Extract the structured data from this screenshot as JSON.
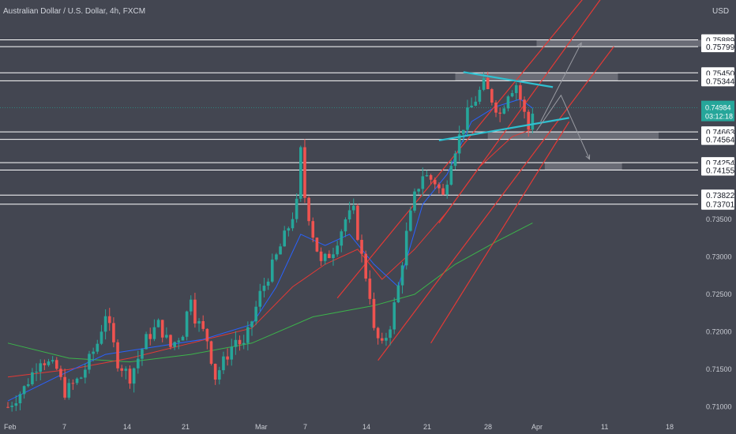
{
  "header": {
    "title": "Australian Dollar / U.S. Dollar, 4h, FXCM",
    "currency": "USD"
  },
  "colors": {
    "background": "#434651",
    "up_candle": "#26a69a",
    "down_candle": "#ef5350",
    "level_line": "#ffffff",
    "channel": "#e53935",
    "trend_line": "#2fc0d0",
    "sma_fast": "#2962ff",
    "sma_mid": "#e53935",
    "sma_slow": "#3cb44b",
    "zone": "#8a8d96",
    "projection": "#9a9ca3",
    "current_price": "#26a69a"
  },
  "chart_data": {
    "type": "candlestick",
    "title": "Australian Dollar / U.S. Dollar, 4h, FXCM",
    "y_unit": "USD",
    "ylim": [
      0.7085,
      0.7642
    ],
    "x_ticks": [
      "Feb",
      "7",
      "14",
      "21",
      "Mar",
      "7",
      "14",
      "21",
      "28",
      "Apr",
      "11",
      "18"
    ],
    "y_ticks": [
      "0.73500",
      "0.73000",
      "0.72500",
      "0.72000",
      "0.71500",
      "0.71000"
    ],
    "current_price": {
      "value": "0.74984",
      "countdown": "03:12:18"
    },
    "levels": [
      {
        "label": "0.75889",
        "value": 0.75889
      },
      {
        "label": "0.75799",
        "value": 0.75799
      },
      {
        "label": "0.75450",
        "value": 0.7545
      },
      {
        "label": "0.75344",
        "value": 0.75344
      },
      {
        "label": "0.74663",
        "value": 0.74663
      },
      {
        "label": "0.74564",
        "value": 0.74564
      },
      {
        "label": "0.74254",
        "value": 0.74254
      },
      {
        "label": "0.74155",
        "value": 0.74155
      },
      {
        "label": "0.73822",
        "value": 0.73822
      },
      {
        "label": "0.73701",
        "value": 0.73701
      }
    ],
    "price_path": [
      [
        0,
        0.71
      ],
      [
        4,
        0.7125
      ],
      [
        8,
        0.7165
      ],
      [
        12,
        0.715
      ],
      [
        14,
        0.712
      ],
      [
        18,
        0.714
      ],
      [
        22,
        0.7185
      ],
      [
        24,
        0.7225
      ],
      [
        27,
        0.716
      ],
      [
        30,
        0.714
      ],
      [
        34,
        0.719
      ],
      [
        37,
        0.721
      ],
      [
        40,
        0.718
      ],
      [
        43,
        0.72
      ],
      [
        45,
        0.725
      ],
      [
        46,
        0.722
      ],
      [
        49,
        0.719
      ],
      [
        51,
        0.714
      ],
      [
        54,
        0.717
      ],
      [
        56,
        0.719
      ],
      [
        58,
        0.718
      ],
      [
        62,
        0.725
      ],
      [
        66,
        0.73
      ],
      [
        69,
        0.734
      ],
      [
        71,
        0.737
      ],
      [
        72,
        0.744
      ],
      [
        73,
        0.738
      ],
      [
        75,
        0.733
      ],
      [
        77,
        0.729
      ],
      [
        80,
        0.731
      ],
      [
        83,
        0.735
      ],
      [
        85,
        0.736
      ],
      [
        87,
        0.73
      ],
      [
        89,
        0.725
      ],
      [
        90,
        0.72
      ],
      [
        92,
        0.718
      ],
      [
        94,
        0.721
      ],
      [
        96,
        0.726
      ],
      [
        98,
        0.733
      ],
      [
        100,
        0.738
      ],
      [
        102,
        0.741
      ],
      [
        105,
        0.74
      ],
      [
        107,
        0.738
      ],
      [
        109,
        0.743
      ],
      [
        111,
        0.746
      ],
      [
        113,
        0.749
      ],
      [
        115,
        0.751
      ],
      [
        117,
        0.753
      ],
      [
        119,
        0.751
      ],
      [
        121,
        0.749
      ],
      [
        123,
        0.752
      ],
      [
        125,
        0.753
      ],
      [
        127,
        0.749
      ],
      [
        128,
        0.747
      ],
      [
        129,
        0.7495
      ]
    ],
    "bar_count": 130,
    "projection": [
      [
        130,
        0.7468
      ],
      [
        136,
        0.7515
      ],
      [
        143,
        0.743
      ]
    ],
    "projection_up": [
      [
        131,
        0.748
      ],
      [
        141,
        0.7585
      ]
    ],
    "moving_averages": {
      "fast": [
        [
          0,
          0.7108
        ],
        [
          12,
          0.714
        ],
        [
          24,
          0.717
        ],
        [
          36,
          0.718
        ],
        [
          48,
          0.719
        ],
        [
          60,
          0.721
        ],
        [
          66,
          0.726
        ],
        [
          72,
          0.733
        ],
        [
          78,
          0.7315
        ],
        [
          84,
          0.733
        ],
        [
          90,
          0.729
        ],
        [
          96,
          0.726
        ],
        [
          102,
          0.737
        ],
        [
          108,
          0.741
        ],
        [
          114,
          0.748
        ],
        [
          120,
          0.75
        ],
        [
          126,
          0.751
        ],
        [
          129,
          0.7498
        ]
      ],
      "mid": [
        [
          0,
          0.714
        ],
        [
          15,
          0.715
        ],
        [
          30,
          0.7165
        ],
        [
          45,
          0.7185
        ],
        [
          60,
          0.7205
        ],
        [
          70,
          0.726
        ],
        [
          78,
          0.729
        ],
        [
          86,
          0.731
        ],
        [
          92,
          0.727
        ],
        [
          100,
          0.731
        ],
        [
          108,
          0.736
        ],
        [
          116,
          0.742
        ],
        [
          124,
          0.746
        ],
        [
          129,
          0.747
        ]
      ],
      "slow": [
        [
          0,
          0.7185
        ],
        [
          15,
          0.7165
        ],
        [
          30,
          0.716
        ],
        [
          45,
          0.717
        ],
        [
          60,
          0.7185
        ],
        [
          75,
          0.722
        ],
        [
          90,
          0.7235
        ],
        [
          100,
          0.725
        ],
        [
          110,
          0.729
        ],
        [
          120,
          0.732
        ],
        [
          129,
          0.7345
        ]
      ]
    }
  }
}
